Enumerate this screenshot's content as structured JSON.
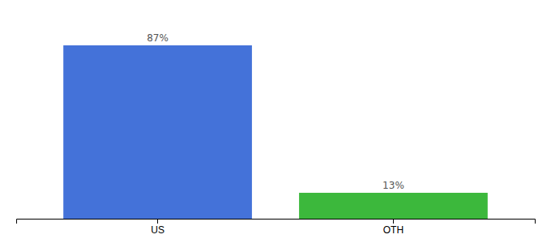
{
  "chart_data": {
    "type": "bar",
    "categories": [
      "US",
      "OTH"
    ],
    "values": [
      87,
      13
    ],
    "value_labels": [
      "87%",
      "13%"
    ],
    "colors": [
      "#4472d9",
      "#3cb83c"
    ],
    "ylim": [
      0,
      100
    ],
    "data_labels": true,
    "tick_labels": "x"
  }
}
